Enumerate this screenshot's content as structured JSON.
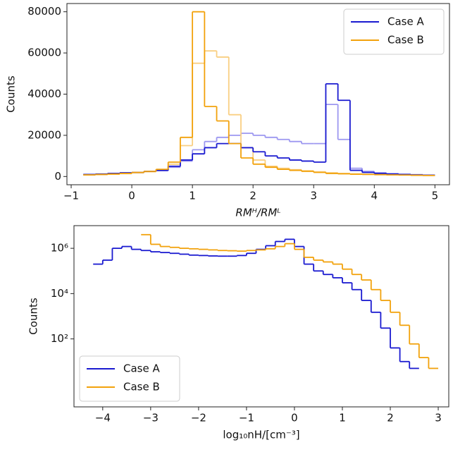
{
  "chart_data": [
    {
      "type": "histogram",
      "xlabel": "RMᴴ/RMᴸ",
      "ylabel": "Counts",
      "bins": [
        -0.8,
        -0.6,
        -0.4,
        -0.2,
        0.0,
        0.2,
        0.4,
        0.6,
        0.8,
        1.0,
        1.2,
        1.4,
        1.6,
        1.8,
        2.0,
        2.2,
        2.4,
        2.6,
        2.8,
        3.0,
        3.2,
        3.4,
        3.6,
        3.8,
        4.0,
        4.2,
        4.4,
        4.6,
        4.8,
        5.0
      ],
      "series": [
        {
          "color": "#9c97f0",
          "values": [
            900,
            1100,
            1300,
            1600,
            1900,
            2300,
            2800,
            4500,
            7500,
            13000,
            17000,
            19000,
            20000,
            21000,
            20000,
            19000,
            18000,
            17000,
            16000,
            16000,
            35000,
            18000,
            4000,
            2500,
            1800,
            1400,
            1100,
            900,
            700
          ]
        },
        {
          "color": "#f9cf82",
          "values": [
            700,
            900,
            1100,
            1400,
            1800,
            2300,
            3200,
            6000,
            15000,
            55000,
            61000,
            58000,
            30000,
            14000,
            8000,
            5000,
            4000,
            3300,
            2800,
            2300,
            1800,
            1500,
            1300,
            1100,
            1000,
            900,
            800,
            700,
            600
          ]
        },
        {
          "name": "Case A",
          "color": "#1a1ad0",
          "values": [
            1000,
            1200,
            1500,
            1800,
            2000,
            2500,
            3000,
            5000,
            8000,
            11000,
            14000,
            16000,
            16000,
            14000,
            12000,
            10000,
            9000,
            8000,
            7500,
            7000,
            45000,
            37000,
            3000,
            2000,
            1500,
            1200,
            1000,
            800,
            600
          ]
        },
        {
          "name": "Case B",
          "color": "#f2a20c",
          "values": [
            800,
            1000,
            1200,
            1500,
            2000,
            2500,
            3500,
            7000,
            19000,
            80000,
            34000,
            27000,
            16000,
            9000,
            6000,
            4500,
            3500,
            3000,
            2500,
            2000,
            1500,
            1300,
            1100,
            1000,
            900,
            800,
            700,
            600,
            500
          ]
        }
      ],
      "xlim": [
        -1.07,
        5.24
      ],
      "ylim": [
        -4000,
        84000
      ],
      "xticks": [
        {
          "value": -1,
          "label": "−1"
        },
        0,
        1,
        2,
        3,
        4,
        5
      ],
      "yticks": [
        0,
        20000,
        40000,
        60000,
        80000
      ],
      "log_y": false,
      "legend": "upper right"
    },
    {
      "type": "histogram",
      "xlabel": "log₁₀nH/[cm⁻³]",
      "ylabel": "Counts",
      "bins": [
        -4.2,
        -4.0,
        -3.8,
        -3.6,
        -3.4,
        -3.2,
        -3.0,
        -2.8,
        -2.6,
        -2.4,
        -2.2,
        -2.0,
        -1.8,
        -1.6,
        -1.4,
        -1.2,
        -1.0,
        -0.8,
        -0.6,
        -0.4,
        -0.2,
        0.0,
        0.2,
        0.4,
        0.6,
        0.8,
        1.0,
        1.2,
        1.4,
        1.6,
        1.8,
        2.0,
        2.2,
        2.4,
        2.6,
        2.8,
        3.0
      ],
      "series": [
        {
          "name": "Case A",
          "color": "#1a1ad0",
          "values": [
            200000,
            300000,
            1000000,
            1200000,
            900000,
            800000,
            700000,
            650000,
            600000,
            550000,
            500000,
            480000,
            460000,
            450000,
            450000,
            480000,
            600000,
            900000,
            1300000,
            2000000,
            2500000,
            1200000,
            200000,
            100000,
            70000,
            50000,
            30000,
            15000,
            5000,
            1500,
            300,
            40,
            10,
            5,
            null,
            null
          ]
        },
        {
          "name": "Case B",
          "color": "#f2a20c",
          "values": [
            null,
            null,
            null,
            null,
            null,
            4000000,
            1500000,
            1200000,
            1100000,
            1000000,
            950000,
            900000,
            850000,
            800000,
            780000,
            750000,
            800000,
            850000,
            950000,
            1200000,
            1600000,
            900000,
            400000,
            300000,
            250000,
            200000,
            120000,
            70000,
            40000,
            15000,
            5000,
            1500,
            400,
            60,
            15,
            5
          ]
        }
      ],
      "xlim": [
        -4.6,
        3.22
      ],
      "ylim": [
        0.1,
        10000000
      ],
      "xticks": [
        {
          "value": -4,
          "label": "−4"
        },
        {
          "value": -3,
          "label": "−3"
        },
        {
          "value": -2,
          "label": "−2"
        },
        {
          "value": -1,
          "label": "−1"
        },
        0,
        1,
        2,
        3
      ],
      "yticks": [
        {
          "value": 100,
          "label": "10²"
        },
        {
          "value": 10000,
          "label": "10⁴"
        },
        {
          "value": 1000000,
          "label": "10⁶"
        }
      ],
      "log_y": true,
      "legend": "lower left"
    }
  ]
}
